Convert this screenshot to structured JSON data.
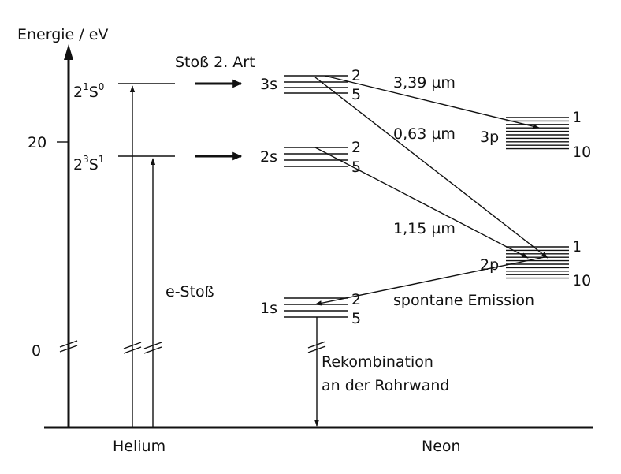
{
  "axis": {
    "title": "Energie / eV",
    "tick_20": "20",
    "tick_0": "0"
  },
  "helium": {
    "label": "Helium",
    "level_singlet": {
      "main": "2",
      "sup1": "1",
      "mid": "S",
      "sup2": "0"
    },
    "level_triplet": {
      "main": "2",
      "sup1": "3",
      "mid": "S",
      "sup2": "1"
    },
    "excitation": "e-Stoß"
  },
  "transfer": {
    "label": "Stoß 2. Art"
  },
  "neon": {
    "label": "Neon",
    "level_3s": {
      "name": "3s",
      "top": "2",
      "bottom": "5"
    },
    "level_2s": {
      "name": "2s",
      "top": "2",
      "bottom": "5"
    },
    "level_3p": {
      "name": "3p",
      "top": "1",
      "bottom": "10"
    },
    "level_2p": {
      "name": "2p",
      "top": "1",
      "bottom": "10"
    },
    "level_1s": {
      "name": "1s",
      "top": "2",
      "bottom": "5"
    },
    "recombination_line1": "Rekombination",
    "recombination_line2": "an der Rohrwand",
    "spontaneous": "spontane Emission"
  },
  "transitions": {
    "t_339": "3,39 µm",
    "t_063": "0,63 µm",
    "t_115": "1,15 µm"
  },
  "colors": {
    "ink": "#111111",
    "background": "#ffffff"
  }
}
